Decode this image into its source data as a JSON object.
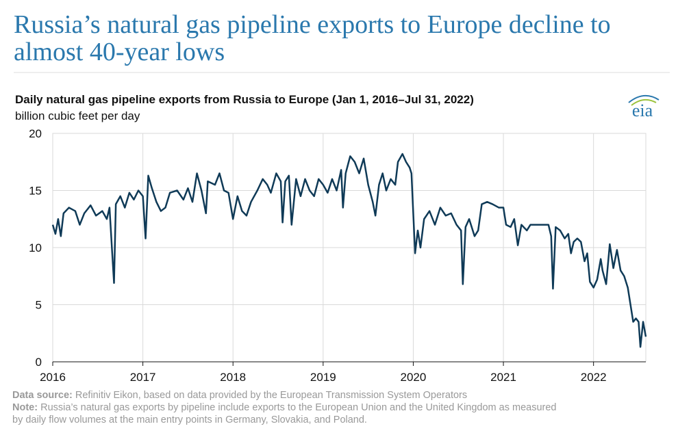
{
  "chart_data": {
    "type": "line",
    "page_title": [
      "Russia’s natural gas pipeline exports to Europe decline to",
      "almost 40-year lows"
    ],
    "title": "Daily natural gas pipeline exports from Russia to Europe (Jan 1, 2016–Jul 31, 2022)",
    "y_label": "billion cubic feet per day",
    "logo": "eia",
    "source_label": "Data source:",
    "source": "Refinitiv Eikon, based on data provided by the European Transmission System Operators",
    "note_label": "Note:",
    "note": [
      "Russia’s natural gas exports by pipeline include exports to the European Union and the United Kingdom as measured",
      "by daily flow volumes at the main entry points in Germany, Slovakia, and Poland."
    ],
    "xlim": [
      2016,
      2022.58
    ],
    "xticks": [
      2016,
      2017,
      2018,
      2019,
      2020,
      2021,
      2022
    ],
    "ylim": [
      0,
      20
    ],
    "yticks": [
      0,
      5,
      10,
      15,
      20
    ],
    "grid": true,
    "x": [
      2016.0,
      2016.03,
      2016.06,
      2016.09,
      2016.12,
      2016.18,
      2016.25,
      2016.3,
      2016.35,
      2016.42,
      2016.48,
      2016.55,
      2016.6,
      2016.63,
      2016.66,
      2016.68,
      2016.7,
      2016.75,
      2016.8,
      2016.85,
      2016.9,
      2016.95,
      2017.0,
      2017.03,
      2017.06,
      2017.1,
      2017.15,
      2017.2,
      2017.25,
      2017.3,
      2017.38,
      2017.45,
      2017.5,
      2017.55,
      2017.6,
      2017.65,
      2017.7,
      2017.72,
      2017.8,
      2017.85,
      2017.9,
      2017.95,
      2018.0,
      2018.05,
      2018.1,
      2018.15,
      2018.2,
      2018.27,
      2018.33,
      2018.38,
      2018.42,
      2018.48,
      2018.53,
      2018.55,
      2018.58,
      2018.62,
      2018.65,
      2018.7,
      2018.75,
      2018.8,
      2018.85,
      2018.9,
      2018.95,
      2019.0,
      2019.05,
      2019.1,
      2019.15,
      2019.2,
      2019.22,
      2019.25,
      2019.3,
      2019.35,
      2019.4,
      2019.45,
      2019.5,
      2019.55,
      2019.58,
      2019.62,
      2019.66,
      2019.7,
      2019.75,
      2019.8,
      2019.83,
      2019.88,
      2019.92,
      2019.96,
      2019.98,
      2020.0,
      2020.02,
      2020.05,
      2020.08,
      2020.12,
      2020.18,
      2020.24,
      2020.3,
      2020.36,
      2020.42,
      2020.48,
      2020.53,
      2020.55,
      2020.58,
      2020.62,
      2020.68,
      2020.72,
      2020.76,
      2020.82,
      2020.88,
      2020.95,
      2021.0,
      2021.03,
      2021.08,
      2021.12,
      2021.16,
      2021.2,
      2021.26,
      2021.3,
      2021.4,
      2021.5,
      2021.53,
      2021.55,
      2021.58,
      2021.63,
      2021.68,
      2021.72,
      2021.75,
      2021.78,
      2021.82,
      2021.86,
      2021.9,
      2021.93,
      2021.96,
      2022.0,
      2022.04,
      2022.08,
      2022.1,
      2022.14,
      2022.18,
      2022.22,
      2022.26,
      2022.3,
      2022.34,
      2022.38,
      2022.42,
      2022.44,
      2022.47,
      2022.5,
      2022.52,
      2022.55,
      2022.58
    ],
    "series": [
      {
        "name": "exports",
        "color": "#0f3a57",
        "values": [
          12.0,
          11.2,
          12.5,
          11.0,
          13.0,
          13.5,
          13.2,
          12.0,
          13.0,
          13.7,
          12.8,
          13.2,
          12.5,
          13.5,
          9.5,
          6.9,
          13.8,
          14.5,
          13.5,
          14.8,
          14.2,
          15.0,
          14.5,
          10.8,
          16.3,
          15.2,
          14.0,
          13.2,
          13.5,
          14.8,
          15.0,
          14.2,
          15.2,
          14.0,
          16.5,
          15.0,
          13.0,
          15.8,
          15.5,
          16.5,
          15.0,
          14.8,
          12.5,
          14.5,
          13.2,
          12.8,
          14.0,
          15.0,
          16.0,
          15.5,
          14.8,
          16.5,
          15.8,
          12.2,
          15.8,
          16.3,
          12.0,
          16.0,
          14.5,
          16.0,
          15.0,
          14.5,
          16.0,
          15.5,
          14.8,
          16.0,
          15.0,
          16.8,
          13.5,
          16.5,
          18.0,
          17.5,
          16.5,
          17.8,
          15.5,
          14.0,
          12.8,
          15.5,
          16.5,
          15.0,
          16.0,
          15.5,
          17.5,
          18.2,
          17.5,
          17.0,
          16.5,
          13.0,
          9.5,
          11.5,
          10.0,
          12.5,
          13.2,
          12.0,
          13.5,
          12.8,
          13.0,
          12.0,
          11.5,
          6.8,
          11.8,
          12.5,
          11.0,
          11.5,
          13.8,
          14.0,
          13.8,
          13.5,
          13.5,
          12.0,
          11.8,
          12.5,
          10.2,
          12.0,
          11.5,
          12.0,
          12.0,
          12.0,
          11.0,
          6.4,
          11.8,
          11.5,
          10.8,
          11.2,
          9.5,
          10.5,
          10.8,
          10.5,
          8.8,
          9.5,
          7.0,
          6.5,
          7.2,
          9.0,
          8.0,
          6.8,
          10.3,
          8.2,
          9.8,
          8.0,
          7.5,
          6.5,
          4.5,
          3.5,
          3.8,
          3.5,
          1.3,
          3.5,
          2.2
        ]
      }
    ]
  }
}
